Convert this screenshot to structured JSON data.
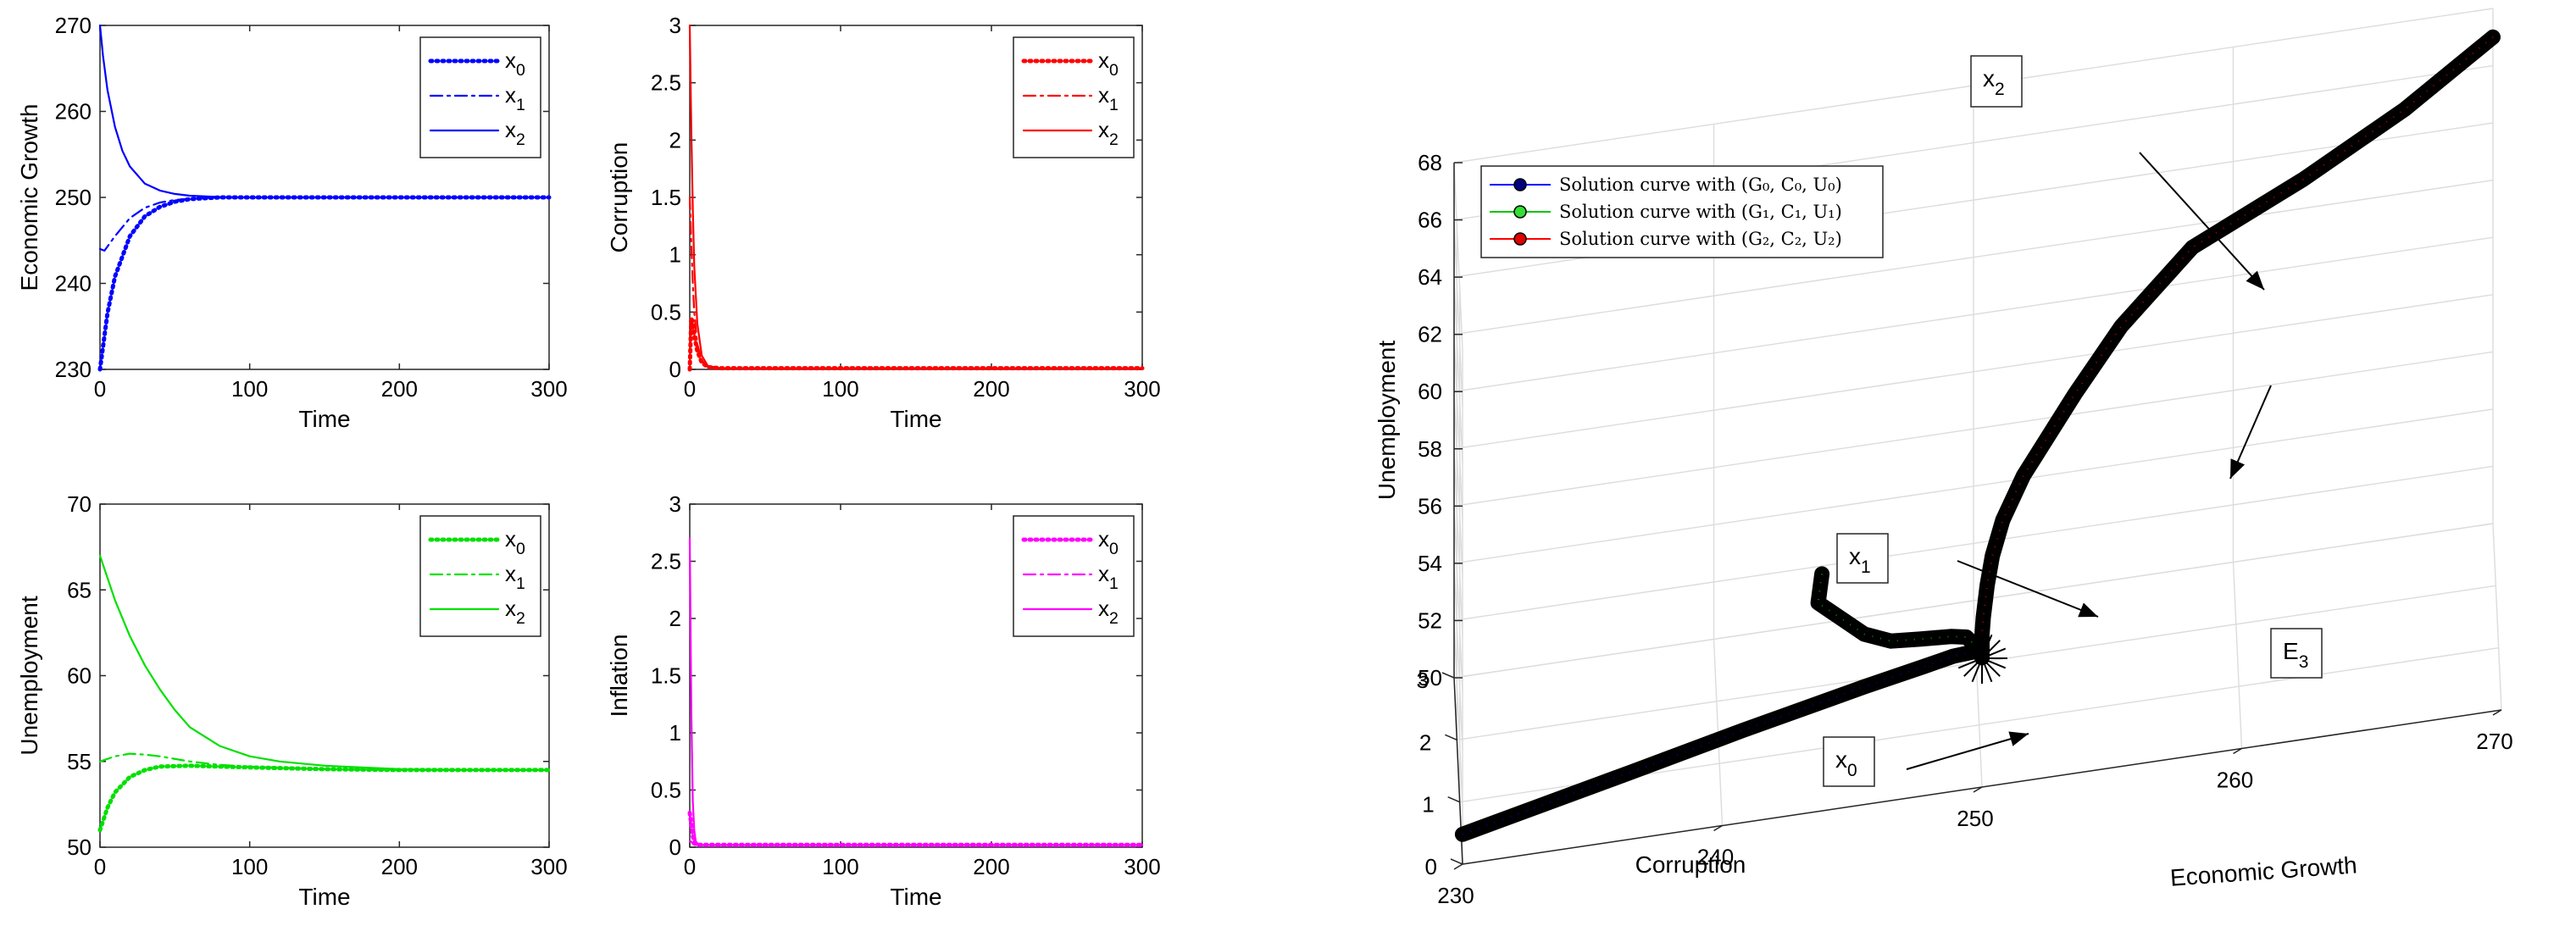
{
  "chart_data": [
    {
      "type": "line",
      "xlabel": "Time",
      "ylabel": "Economic Growth",
      "xlim": [
        0,
        300
      ],
      "ylim": [
        230,
        270
      ],
      "xticks": [
        0,
        100,
        200,
        300
      ],
      "yticks": [
        230,
        240,
        250,
        260,
        270
      ],
      "color": "#0000ff",
      "legend_position": "top-right",
      "series": [
        {
          "name": "x0",
          "style": "dotted",
          "x": [
            0,
            5,
            10,
            20,
            30,
            40,
            50,
            60,
            80,
            100,
            150,
            200,
            300
          ],
          "values": [
            230,
            236.5,
            240.8,
            245.5,
            247.8,
            248.9,
            249.5,
            249.8,
            250,
            250,
            250,
            250,
            250
          ]
        },
        {
          "name": "x1",
          "style": "dashdot",
          "x": [
            0,
            3,
            10,
            20,
            30,
            40,
            50,
            70,
            100,
            150,
            200,
            300
          ],
          "values": [
            244,
            243.8,
            245.5,
            247.6,
            248.8,
            249.4,
            249.7,
            249.95,
            250,
            250,
            250,
            250
          ]
        },
        {
          "name": "x2",
          "style": "solid",
          "x": [
            0,
            2,
            5,
            10,
            15,
            20,
            30,
            40,
            50,
            60,
            80,
            100,
            150,
            200,
            300
          ],
          "values": [
            270,
            266.5,
            262.5,
            258.2,
            255.4,
            253.6,
            251.6,
            250.8,
            250.4,
            250.2,
            250.05,
            250,
            250,
            250,
            250
          ]
        }
      ]
    },
    {
      "type": "line",
      "xlabel": "Time",
      "ylabel": "Corruption",
      "xlim": [
        0,
        300
      ],
      "ylim": [
        0,
        3
      ],
      "xticks": [
        0,
        100,
        200,
        300
      ],
      "yticks": [
        0,
        0.5,
        1,
        1.5,
        2,
        2.5,
        3
      ],
      "color": "#ff0000",
      "legend_position": "top-right",
      "series": [
        {
          "name": "x0",
          "style": "dotted",
          "x": [
            0,
            1,
            2,
            3,
            5,
            8,
            12,
            20,
            300
          ],
          "values": [
            0,
            0.45,
            0.4,
            0.3,
            0.16,
            0.06,
            0.02,
            0.01,
            0.01
          ]
        },
        {
          "name": "x1",
          "style": "dashdot",
          "x": [
            0,
            1,
            2,
            3,
            5,
            8,
            12,
            20,
            300
          ],
          "values": [
            1.5,
            1.1,
            0.75,
            0.5,
            0.22,
            0.08,
            0.02,
            0.01,
            0.01
          ]
        },
        {
          "name": "x2",
          "style": "solid",
          "x": [
            0,
            1,
            2,
            3,
            5,
            8,
            12,
            20,
            300
          ],
          "values": [
            3,
            2.1,
            1.4,
            0.9,
            0.4,
            0.12,
            0.03,
            0.01,
            0.01
          ]
        }
      ]
    },
    {
      "type": "line",
      "xlabel": "Time",
      "ylabel": "Unemployment",
      "xlim": [
        0,
        300
      ],
      "ylim": [
        50,
        70
      ],
      "xticks": [
        0,
        100,
        200,
        300
      ],
      "yticks": [
        50,
        55,
        60,
        65,
        70
      ],
      "color": "#00e000",
      "legend_position": "top-right",
      "series": [
        {
          "name": "x0",
          "style": "dotted",
          "x": [
            0,
            5,
            10,
            20,
            30,
            40,
            60,
            80,
            100,
            150,
            200,
            300
          ],
          "values": [
            51,
            52.3,
            53.2,
            54.1,
            54.5,
            54.7,
            54.75,
            54.7,
            54.65,
            54.55,
            54.5,
            54.5
          ]
        },
        {
          "name": "x1",
          "style": "dashdot",
          "x": [
            0,
            10,
            20,
            30,
            40,
            60,
            80,
            100,
            150,
            200,
            300
          ],
          "values": [
            55,
            55.3,
            55.45,
            55.4,
            55.3,
            55.0,
            54.8,
            54.7,
            54.55,
            54.5,
            54.5
          ]
        },
        {
          "name": "x2",
          "style": "solid",
          "x": [
            0,
            10,
            20,
            30,
            40,
            50,
            60,
            80,
            100,
            120,
            150,
            200,
            250,
            300
          ],
          "values": [
            67,
            64.4,
            62.3,
            60.6,
            59.2,
            58.0,
            57.0,
            55.9,
            55.3,
            55.0,
            54.75,
            54.55,
            54.5,
            54.5
          ]
        }
      ]
    },
    {
      "type": "line",
      "xlabel": "Time",
      "ylabel": "Inflation",
      "xlim": [
        0,
        300
      ],
      "ylim": [
        0,
        3
      ],
      "xticks": [
        0,
        100,
        200,
        300
      ],
      "yticks": [
        0,
        0.5,
        1,
        1.5,
        2,
        2.5,
        3
      ],
      "color": "#ff00ff",
      "legend_position": "top-right",
      "series": [
        {
          "name": "x0",
          "style": "dotted",
          "x": [
            0,
            1,
            2,
            3,
            5,
            300
          ],
          "values": [
            0.3,
            0.2,
            0.1,
            0.05,
            0.02,
            0.02
          ]
        },
        {
          "name": "x1",
          "style": "dashdot",
          "x": [
            0,
            1,
            2,
            3,
            5,
            300
          ],
          "values": [
            0.05,
            0.05,
            0.03,
            0.02,
            0.02,
            0.02
          ]
        },
        {
          "name": "x2",
          "style": "solid",
          "x": [
            0,
            1,
            2,
            3,
            4,
            6,
            300
          ],
          "values": [
            2.7,
            1.2,
            0.4,
            0.15,
            0.05,
            0.02,
            0.02
          ]
        }
      ]
    },
    {
      "type": "scatter",
      "xlabel": "Economic Growth",
      "ylabel": "Corruption",
      "zlabel": "Unemployment",
      "xlim": [
        230,
        270
      ],
      "ylim": [
        0,
        3
      ],
      "zlim": [
        50,
        68
      ],
      "xticks": [
        230,
        240,
        250,
        260,
        270
      ],
      "yticks": [
        0,
        1,
        2,
        3
      ],
      "zticks": [
        50,
        52,
        54,
        56,
        58,
        60,
        62,
        64,
        66,
        68
      ],
      "grid": true,
      "legend_position": "top-left",
      "legend": [
        {
          "label": "Solution curve with (G₀, C₀, U₀)",
          "color": "#0000ff",
          "marker_face": "#000080"
        },
        {
          "label": "Solution curve with (G₁, C₁, U₁)",
          "color": "#00c800",
          "marker_face": "#32e032"
        },
        {
          "label": "Solution curve with (G₂, C₂, U₂)",
          "color": "#ff0000",
          "marker_face": "#e00000"
        }
      ],
      "annotations": [
        {
          "main": "x",
          "sub": "0"
        },
        {
          "main": "x",
          "sub": "1"
        },
        {
          "main": "x",
          "sub": "2"
        },
        {
          "main": "E",
          "sub": "3"
        }
      ],
      "equilibrium": {
        "x": 250,
        "y": 0,
        "z": 54.5
      },
      "series": [
        {
          "name": "x0",
          "points": [
            [
              230,
              0.02,
              51
            ],
            [
              236.5,
              0.02,
              52.3
            ],
            [
              240.8,
              0.01,
              53.2
            ],
            [
              245.5,
              0.01,
              54.1
            ],
            [
              247.8,
              0.01,
              54.5
            ],
            [
              248.9,
              0.01,
              54.7
            ],
            [
              249.8,
              0.01,
              54.75
            ],
            [
              250,
              0.01,
              54.65
            ],
            [
              250,
              0.01,
              54.5
            ]
          ]
        },
        {
          "name": "x1",
          "points": [
            [
              244,
              1.5,
              55
            ],
            [
              243.8,
              1.0,
              55.1
            ],
            [
              245.5,
              0.3,
              55.3
            ],
            [
              246.5,
              0.08,
              55.4
            ],
            [
              247.6,
              0.02,
              55.45
            ],
            [
              248.8,
              0.01,
              55.4
            ],
            [
              249.4,
              0.01,
              55.3
            ],
            [
              249.7,
              0.01,
              55.0
            ],
            [
              250,
              0.01,
              54.8
            ],
            [
              250,
              0.01,
              54.5
            ]
          ]
        },
        {
          "name": "x2",
          "points": [
            [
              270,
              3,
              67
            ],
            [
              266.5,
              2.1,
              66.9
            ],
            [
              262.5,
              1.4,
              66.5
            ],
            [
              258.2,
              0.9,
              65.8
            ],
            [
              255.4,
              0.4,
              64.5
            ],
            [
              253.6,
              0.12,
              63.0
            ],
            [
              251.6,
              0.03,
              60.6
            ],
            [
              250.8,
              0.01,
              59.2
            ],
            [
              250.4,
              0.01,
              58.0
            ],
            [
              250.2,
              0.01,
              57.0
            ],
            [
              250.05,
              0.01,
              55.9
            ],
            [
              250,
              0.01,
              55.3
            ],
            [
              250,
              0.01,
              54.75
            ],
            [
              250,
              0.01,
              54.5
            ]
          ]
        }
      ]
    }
  ]
}
